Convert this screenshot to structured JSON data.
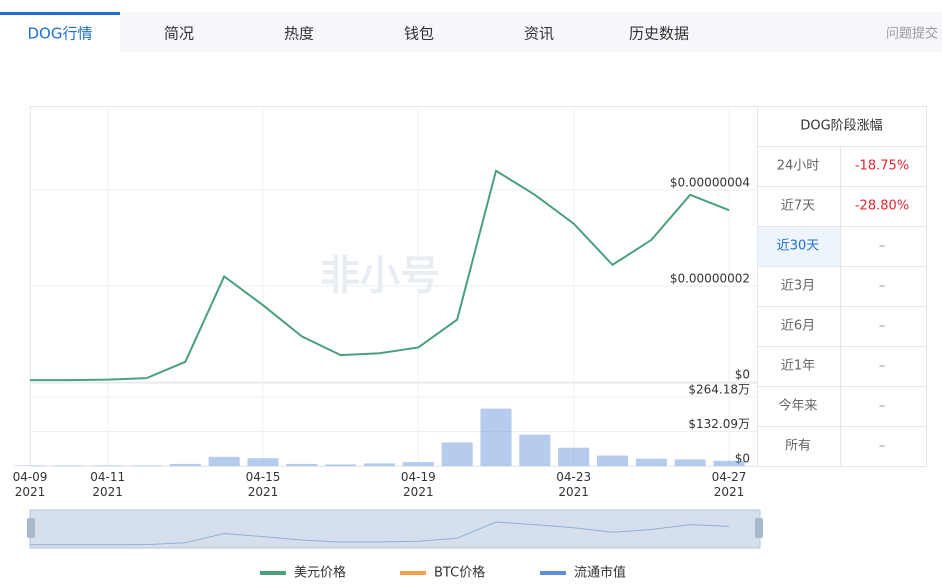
{
  "tabs": [
    "DOG行情",
    "简况",
    "热度",
    "钱包",
    "资讯",
    "历史数据"
  ],
  "feedback": "问题提交",
  "table": {
    "title": "DOG阶段涨幅",
    "rows": [
      [
        "24小时",
        "-18.75%"
      ],
      [
        "近7天",
        "-28.80%"
      ],
      [
        "近30天",
        "–"
      ],
      [
        "近3月",
        "–"
      ],
      [
        "近6月",
        "–"
      ],
      [
        "近1年",
        "–"
      ],
      [
        "今年来",
        "–"
      ],
      [
        "所有",
        "–"
      ]
    ]
  },
  "chart_data": {
    "type": "line",
    "watermark": "非小号",
    "x": [
      "2021-04-09",
      "2021-04-10",
      "2021-04-11",
      "2021-04-12",
      "2021-04-13",
      "2021-04-14",
      "2021-04-15",
      "2021-04-16",
      "2021-04-17",
      "2021-04-18",
      "2021-04-19",
      "2021-04-20",
      "2021-04-21",
      "2021-04-22",
      "2021-04-23",
      "2021-04-24",
      "2021-04-25",
      "2021-04-26",
      "2021-04-27"
    ],
    "xlim": [
      "2021-04-09",
      "2021-04-27"
    ],
    "xticks": [
      {
        "value": "2021-04-09",
        "label": "04-09\n2021"
      },
      {
        "value": "2021-04-11",
        "label": "04-11\n2021"
      },
      {
        "value": "2021-04-15",
        "label": "04-15\n2021"
      },
      {
        "value": "2021-04-19",
        "label": "04-19\n2021"
      },
      {
        "value": "2021-04-23",
        "label": "04-23\n2021"
      },
      {
        "value": "2021-04-27",
        "label": "04-27\n2021"
      }
    ],
    "ylim": [
      0,
      5.75e-08
    ],
    "yticks": [
      {
        "value": 0,
        "label": "$0"
      },
      {
        "value": 2e-08,
        "label": "$0.00000002"
      },
      {
        "value": 4e-08,
        "label": "$0.00000004"
      }
    ],
    "y2lim": [
      0,
      3180000
    ],
    "y2ticks": [
      {
        "value": 0,
        "label": "$0"
      },
      {
        "value": 1320900,
        "label": "$132.09万"
      },
      {
        "value": 2641800,
        "label": "$264.18万"
      }
    ],
    "series": [
      {
        "name": "美元价格",
        "color": "#4aa07a",
        "values": [
          4e-10,
          4e-10,
          5e-10,
          8e-10,
          4.2e-09,
          2.2e-08,
          1.6e-08,
          9.5e-09,
          5.6e-09,
          6e-09,
          7.2e-09,
          1.3e-08,
          4.4e-08,
          3.9e-08,
          3.3e-08,
          2.44e-08,
          2.96e-08,
          3.9e-08,
          3.58e-08
        ]
      },
      {
        "name": "BTC价格",
        "color": "#f5a04a"
      },
      {
        "name": "流通市值",
        "color": "#5b8fd9",
        "axis": "y2",
        "values": [
          20000,
          20000,
          20000,
          20000,
          80000,
          350000,
          300000,
          80000,
          60000,
          100000,
          150000,
          900000,
          2200000,
          1200000,
          700000,
          400000,
          280000,
          250000,
          200000
        ]
      }
    ]
  }
}
